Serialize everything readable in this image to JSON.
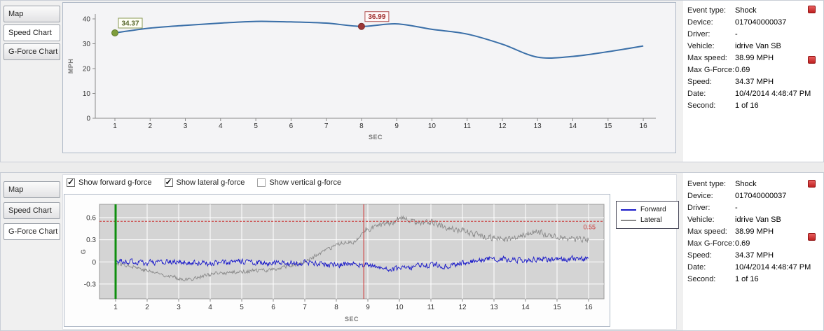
{
  "colors": {
    "speed_line": "#3a6fa8",
    "forward": "#1a1ac8",
    "lateral": "#8a8a8a",
    "threshold": "#cc3333",
    "cursor_green": "#0f8f0f",
    "cursor_red": "#d03030"
  },
  "top_panel": {
    "tabs": [
      {
        "label": "Map",
        "selected": false
      },
      {
        "label": "Speed Chart",
        "selected": true
      },
      {
        "label": "G-Force Chart",
        "selected": false
      }
    ],
    "info": {
      "rows": [
        {
          "label": "Event type:",
          "value": "Shock"
        },
        {
          "label": "Device:",
          "value": "017040000037"
        },
        {
          "label": "Driver:",
          "value": "-"
        },
        {
          "label": "Vehicle:",
          "value": "idrive Van SB"
        },
        {
          "label": "Max speed:",
          "value": "38.99 MPH"
        },
        {
          "label": "Max G-Force:",
          "value": "0.69"
        },
        {
          "label": "Speed:",
          "value": "34.37 MPH"
        },
        {
          "label": "Date:",
          "value": "10/4/2014 4:48:47 PM"
        },
        {
          "label": "Second:",
          "value": "1 of 16"
        }
      ]
    }
  },
  "bottom_panel": {
    "tabs": [
      {
        "label": "Map",
        "selected": false
      },
      {
        "label": "Speed Chart",
        "selected": false
      },
      {
        "label": "G-Force Chart",
        "selected": true
      }
    ],
    "checkboxes": [
      {
        "label": "Show forward g-force",
        "checked": true
      },
      {
        "label": "Show lateral g-force",
        "checked": true
      },
      {
        "label": "Show vertical g-force",
        "checked": false
      }
    ],
    "legend": [
      {
        "label": "Forward",
        "color": "#1a1ac8"
      },
      {
        "label": "Lateral",
        "color": "#8a8a8a"
      }
    ],
    "info": {
      "rows": [
        {
          "label": "Event type:",
          "value": "Shock"
        },
        {
          "label": "Device:",
          "value": "017040000037"
        },
        {
          "label": "Driver:",
          "value": "-"
        },
        {
          "label": "Vehicle:",
          "value": "idrive Van SB"
        },
        {
          "label": "Max speed:",
          "value": "38.99 MPH"
        },
        {
          "label": "Max G-Force:",
          "value": "0.69"
        },
        {
          "label": "Speed:",
          "value": "34.37 MPH"
        },
        {
          "label": "Date:",
          "value": "10/4/2014 4:48:47 PM"
        },
        {
          "label": "Second:",
          "value": "1 of 16"
        }
      ]
    }
  },
  "chart_data": [
    {
      "type": "line",
      "xlabel": "SEC",
      "ylabel": "MPH",
      "x": [
        1,
        2,
        3,
        4,
        5,
        6,
        7,
        8,
        9,
        10,
        11,
        12,
        13,
        14,
        15,
        16
      ],
      "values": [
        34.37,
        36.3,
        37.4,
        38.3,
        38.99,
        38.8,
        38.3,
        36.99,
        38.0,
        35.8,
        33.9,
        29.8,
        24.6,
        24.9,
        26.8,
        29.1
      ],
      "ylim": [
        0,
        40
      ],
      "yticks": [
        0,
        10,
        20,
        30,
        40
      ],
      "markers": [
        {
          "x": 1,
          "value": 34.37,
          "label": "34.37",
          "color": "#7e9d3c",
          "stroke": "#5f7a2a",
          "box_border": "#8a9a55",
          "box_bg": "#fffff6",
          "text_color": "#55662a"
        },
        {
          "x": 8,
          "value": 36.99,
          "label": "36.99",
          "color": "#9c3736",
          "stroke": "#7a2a29",
          "box_border": "#b05050",
          "box_bg": "#fff8f8",
          "text_color": "#a03030"
        }
      ]
    },
    {
      "type": "line",
      "xlabel": "SEC",
      "ylabel": "G",
      "xlim": [
        0.5,
        16.5
      ],
      "ylim": [
        -0.5,
        0.78
      ],
      "yticks": [
        -0.3,
        0,
        0.3,
        0.6
      ],
      "threshold": {
        "value": 0.55,
        "label": "0.55"
      },
      "cursors": [
        {
          "x": 1,
          "color": "#0f8f0f",
          "width": 3
        },
        {
          "x": 8.87,
          "color": "#d03030",
          "width": 1
        }
      ],
      "series": [
        {
          "name": "Forward",
          "color": "#1a1ac8",
          "waypoints": [
            [
              1,
              0.01
            ],
            [
              2,
              -0.01
            ],
            [
              3,
              0
            ],
            [
              4,
              -0.02
            ],
            [
              5,
              0
            ],
            [
              6,
              -0.02
            ],
            [
              7,
              -0.01
            ],
            [
              8,
              -0.04
            ],
            [
              8.5,
              -0.02
            ],
            [
              9,
              -0.05
            ],
            [
              9.5,
              -0.08
            ],
            [
              10,
              -0.1
            ],
            [
              10.5,
              -0.06
            ],
            [
              11,
              -0.04
            ],
            [
              11.5,
              -0.06
            ],
            [
              12,
              -0.01
            ],
            [
              12.5,
              0.02
            ],
            [
              13,
              0.05
            ],
            [
              13.5,
              0.03
            ],
            [
              14,
              0.01
            ],
            [
              14.5,
              0.04
            ],
            [
              15,
              0.03
            ],
            [
              15.5,
              0.05
            ],
            [
              16,
              0.04
            ]
          ],
          "noise": [
            {
              "until": 16,
              "amp": 0.05
            }
          ]
        },
        {
          "name": "Lateral",
          "color": "#8a8a8a",
          "waypoints": [
            [
              1,
              -0.02
            ],
            [
              1.5,
              -0.05
            ],
            [
              2,
              -0.12
            ],
            [
              2.5,
              -0.17
            ],
            [
              3,
              -0.22
            ],
            [
              3.3,
              -0.24
            ],
            [
              3.7,
              -0.2
            ],
            [
              4,
              -0.17
            ],
            [
              4.5,
              -0.15
            ],
            [
              5,
              -0.13
            ],
            [
              5.5,
              -0.12
            ],
            [
              6,
              -0.1
            ],
            [
              6.5,
              -0.06
            ],
            [
              7,
              0.0
            ],
            [
              7.5,
              0.12
            ],
            [
              8,
              0.22
            ],
            [
              8.3,
              0.28
            ],
            [
              8.6,
              0.26
            ],
            [
              8.9,
              0.43
            ],
            [
              9.2,
              0.48
            ],
            [
              9.5,
              0.5
            ],
            [
              9.8,
              0.55
            ],
            [
              10,
              0.6
            ],
            [
              10.3,
              0.55
            ],
            [
              10.7,
              0.52
            ],
            [
              11,
              0.55
            ],
            [
              11.3,
              0.5
            ],
            [
              11.7,
              0.45
            ],
            [
              12,
              0.42
            ],
            [
              12.5,
              0.36
            ],
            [
              13,
              0.32
            ],
            [
              13.5,
              0.3
            ],
            [
              14,
              0.37
            ],
            [
              14.3,
              0.42
            ],
            [
              14.7,
              0.36
            ],
            [
              15,
              0.34
            ],
            [
              15.5,
              0.32
            ],
            [
              16,
              0.3
            ]
          ],
          "noise": [
            {
              "until": 8.8,
              "amp": 0.035
            },
            {
              "until": 16,
              "amp": 0.055
            }
          ]
        }
      ]
    }
  ]
}
